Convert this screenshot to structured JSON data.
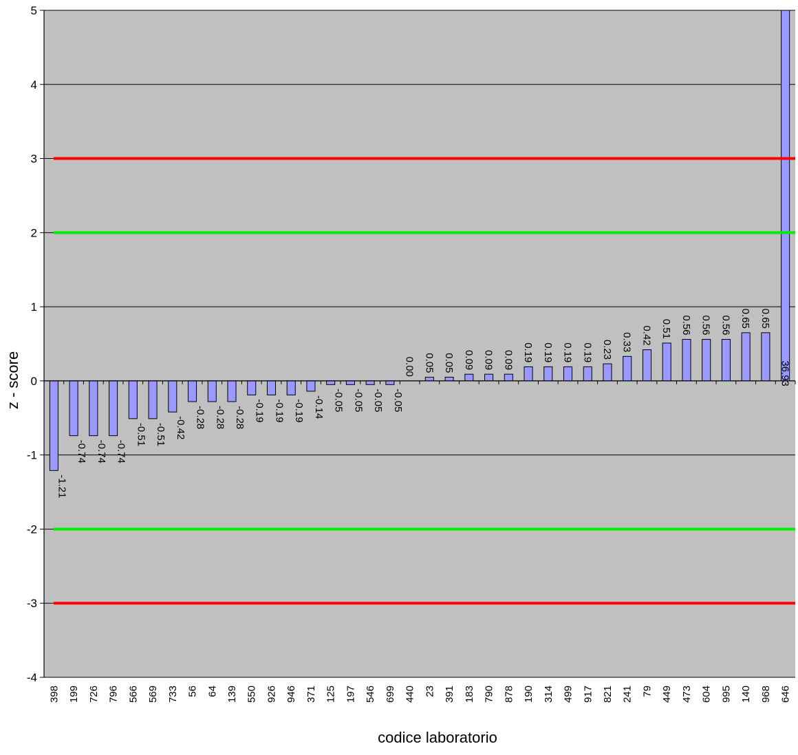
{
  "chart_data": {
    "type": "bar",
    "xlabel": "codice laboratorio",
    "ylabel": "z - score",
    "ylim": [
      -4,
      5
    ],
    "yticks": [
      -4,
      -3,
      -2,
      -1,
      0,
      1,
      2,
      3,
      4,
      5
    ],
    "grid": true,
    "categories": [
      "398",
      "199",
      "726",
      "796",
      "566",
      "569",
      "733",
      "56",
      "64",
      "139",
      "550",
      "926",
      "946",
      "371",
      "125",
      "197",
      "546",
      "699",
      "440",
      "23",
      "391",
      "183",
      "790",
      "878",
      "190",
      "314",
      "499",
      "917",
      "821",
      "241",
      "79",
      "449",
      "473",
      "604",
      "995",
      "140",
      "968",
      "646"
    ],
    "values": [
      -1.21,
      -0.74,
      -0.74,
      -0.74,
      -0.51,
      -0.51,
      -0.42,
      -0.28,
      -0.28,
      -0.28,
      -0.19,
      -0.19,
      -0.19,
      -0.14,
      -0.05,
      -0.05,
      -0.05,
      -0.05,
      0.0,
      0.05,
      0.05,
      0.09,
      0.09,
      0.09,
      0.19,
      0.19,
      0.19,
      0.19,
      0.23,
      0.33,
      0.42,
      0.51,
      0.56,
      0.56,
      0.56,
      0.65,
      0.65,
      36.93
    ],
    "data_labels": [
      "-1.21",
      "-0.74",
      "-0.74",
      "-0.74",
      "-0.51",
      "-0.51",
      "-0.42",
      "-0.28",
      "-0.28",
      "-0.28",
      "-0.19",
      "-0.19",
      "-0.19",
      "-0.14",
      "-0.05",
      "-0.05",
      "-0.05",
      "-0.05",
      "0.00",
      "0.05",
      "0.05",
      "0.09",
      "0.09",
      "0.09",
      "0.19",
      "0.19",
      "0.19",
      "0.19",
      "0.23",
      "0.33",
      "0.42",
      "0.51",
      "0.56",
      "0.56",
      "0.56",
      "0.65",
      "0.65",
      "36.93"
    ],
    "reference_lines": [
      {
        "y": 3,
        "color": "#ff0000"
      },
      {
        "y": 2,
        "color": "#00ee00"
      },
      {
        "y": -2,
        "color": "#00ee00"
      },
      {
        "y": -3,
        "color": "#ff0000"
      }
    ],
    "colors": {
      "plot_background": "#c0c0c0",
      "bar_fill": "#9999ff",
      "bar_stroke": "#000000",
      "gridline": "#000000"
    }
  }
}
